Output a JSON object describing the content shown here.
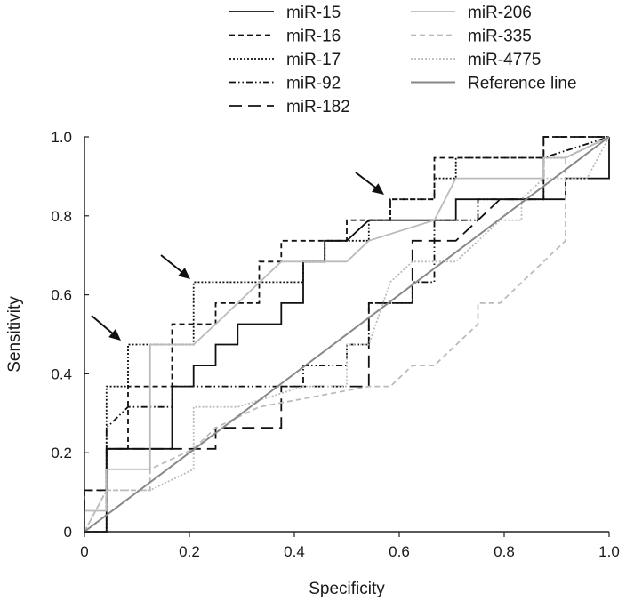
{
  "chart_data": {
    "type": "line",
    "title": "",
    "xlabel": "Specificity",
    "ylabel": "Sensitivity",
    "xlim": [
      0,
      1
    ],
    "ylim": [
      0,
      1
    ],
    "xticks": [
      "0",
      "0.2",
      "0.4",
      "0.6",
      "0.8",
      "1.0"
    ],
    "yticks": [
      "0",
      "0.2",
      "0.4",
      "0.6",
      "0.8",
      "1.0"
    ],
    "grid": false,
    "legend_position": "top",
    "series": [
      {
        "name": "miR-15",
        "color": "#111111",
        "style": "solid",
        "points": [
          [
            0,
            0
          ],
          [
            0.042,
            0
          ],
          [
            0.042,
            0.21
          ],
          [
            0.167,
            0.21
          ],
          [
            0.167,
            0.368
          ],
          [
            0.208,
            0.368
          ],
          [
            0.208,
            0.421
          ],
          [
            0.25,
            0.421
          ],
          [
            0.25,
            0.474
          ],
          [
            0.292,
            0.474
          ],
          [
            0.292,
            0.526
          ],
          [
            0.375,
            0.526
          ],
          [
            0.375,
            0.579
          ],
          [
            0.417,
            0.579
          ],
          [
            0.417,
            0.684
          ],
          [
            0.458,
            0.684
          ],
          [
            0.458,
            0.737
          ],
          [
            0.5,
            0.737
          ],
          [
            0.542,
            0.789
          ],
          [
            0.708,
            0.789
          ],
          [
            0.708,
            0.842
          ],
          [
            0.917,
            0.842
          ],
          [
            0.917,
            0.895
          ],
          [
            1,
            0.895
          ],
          [
            1,
            1
          ]
        ]
      },
      {
        "name": "miR-16",
        "color": "#111111",
        "style": "dash",
        "points": [
          [
            0,
            0
          ],
          [
            0,
            0.105
          ],
          [
            0.042,
            0.105
          ],
          [
            0.042,
            0.21
          ],
          [
            0.083,
            0.21
          ],
          [
            0.083,
            0.368
          ],
          [
            0.167,
            0.368
          ],
          [
            0.167,
            0.526
          ],
          [
            0.25,
            0.526
          ],
          [
            0.25,
            0.579
          ],
          [
            0.333,
            0.579
          ],
          [
            0.333,
            0.684
          ],
          [
            0.375,
            0.684
          ],
          [
            0.375,
            0.737
          ],
          [
            0.5,
            0.737
          ],
          [
            0.5,
            0.789
          ],
          [
            0.583,
            0.789
          ],
          [
            0.583,
            0.842
          ],
          [
            0.667,
            0.842
          ],
          [
            0.667,
            0.947
          ],
          [
            0.875,
            0.947
          ],
          [
            0.875,
            1
          ],
          [
            1,
            1
          ]
        ]
      },
      {
        "name": "miR-17",
        "color": "#111111",
        "style": "dot",
        "points": [
          [
            0,
            0
          ],
          [
            0.042,
            0
          ],
          [
            0.042,
            0.368
          ],
          [
            0.083,
            0.368
          ],
          [
            0.083,
            0.474
          ],
          [
            0.208,
            0.474
          ],
          [
            0.208,
            0.632
          ],
          [
            0.417,
            0.632
          ],
          [
            0.417,
            0.684
          ],
          [
            0.458,
            0.684
          ],
          [
            0.458,
            0.737
          ],
          [
            0.542,
            0.737
          ],
          [
            0.542,
            0.789
          ],
          [
            0.583,
            0.789
          ],
          [
            0.583,
            0.842
          ],
          [
            0.667,
            0.842
          ],
          [
            0.667,
            0.895
          ],
          [
            0.708,
            0.895
          ],
          [
            0.708,
            0.947
          ],
          [
            0.917,
            0.947
          ],
          [
            1,
            1
          ]
        ]
      },
      {
        "name": "miR-92",
        "color": "#111111",
        "style": "dashdotdot",
        "points": [
          [
            0,
            0
          ],
          [
            0.042,
            0
          ],
          [
            0.042,
            0.263
          ],
          [
            0.083,
            0.316
          ],
          [
            0.167,
            0.316
          ],
          [
            0.167,
            0.368
          ],
          [
            0.417,
            0.368
          ],
          [
            0.417,
            0.421
          ],
          [
            0.5,
            0.421
          ],
          [
            0.5,
            0.474
          ],
          [
            0.542,
            0.474
          ],
          [
            0.542,
            0.579
          ],
          [
            0.625,
            0.579
          ],
          [
            0.625,
            0.632
          ],
          [
            0.667,
            0.632
          ],
          [
            0.667,
            0.789
          ],
          [
            0.75,
            0.789
          ],
          [
            0.75,
            0.842
          ],
          [
            0.875,
            0.842
          ],
          [
            0.875,
            0.947
          ],
          [
            1,
            1
          ]
        ]
      },
      {
        "name": "miR-182",
        "color": "#111111",
        "style": "longdash",
        "points": [
          [
            0,
            0
          ],
          [
            0,
            0.105
          ],
          [
            0.042,
            0.105
          ],
          [
            0.042,
            0.21
          ],
          [
            0.25,
            0.21
          ],
          [
            0.25,
            0.263
          ],
          [
            0.375,
            0.263
          ],
          [
            0.375,
            0.368
          ],
          [
            0.542,
            0.368
          ],
          [
            0.542,
            0.579
          ],
          [
            0.625,
            0.579
          ],
          [
            0.625,
            0.737
          ],
          [
            0.708,
            0.737
          ],
          [
            0.75,
            0.789
          ],
          [
            0.792,
            0.842
          ],
          [
            0.875,
            0.842
          ],
          [
            0.875,
            1
          ],
          [
            1,
            1
          ]
        ]
      },
      {
        "name": "miR-206",
        "color": "#bbbbbb",
        "style": "solid",
        "points": [
          [
            0,
            0
          ],
          [
            0,
            0.053
          ],
          [
            0.042,
            0.053
          ],
          [
            0.042,
            0.158
          ],
          [
            0.125,
            0.158
          ],
          [
            0.125,
            0.474
          ],
          [
            0.208,
            0.474
          ],
          [
            0.25,
            0.526
          ],
          [
            0.292,
            0.579
          ],
          [
            0.375,
            0.684
          ],
          [
            0.5,
            0.684
          ],
          [
            0.542,
            0.737
          ],
          [
            0.667,
            0.789
          ],
          [
            0.708,
            0.895
          ],
          [
            0.875,
            0.895
          ],
          [
            0.875,
            0.947
          ],
          [
            0.917,
            0.947
          ],
          [
            1,
            1
          ]
        ]
      },
      {
        "name": "miR-335",
        "color": "#bbbbbb",
        "style": "dash",
        "points": [
          [
            0,
            0
          ],
          [
            0.042,
            0.105
          ],
          [
            0.125,
            0.105
          ],
          [
            0.125,
            0.158
          ],
          [
            0.208,
            0.21
          ],
          [
            0.25,
            0.263
          ],
          [
            0.333,
            0.316
          ],
          [
            0.542,
            0.368
          ],
          [
            0.583,
            0.368
          ],
          [
            0.625,
            0.421
          ],
          [
            0.667,
            0.421
          ],
          [
            0.75,
            0.526
          ],
          [
            0.75,
            0.579
          ],
          [
            0.792,
            0.579
          ],
          [
            0.917,
            0.737
          ],
          [
            0.917,
            0.947
          ],
          [
            1,
            1
          ]
        ]
      },
      {
        "name": "miR-4775",
        "color": "#bbbbbb",
        "style": "dot",
        "points": [
          [
            0,
            0
          ],
          [
            0.042,
            0.105
          ],
          [
            0.125,
            0.105
          ],
          [
            0.208,
            0.158
          ],
          [
            0.208,
            0.316
          ],
          [
            0.292,
            0.316
          ],
          [
            0.417,
            0.368
          ],
          [
            0.5,
            0.368
          ],
          [
            0.5,
            0.474
          ],
          [
            0.542,
            0.474
          ],
          [
            0.583,
            0.632
          ],
          [
            0.625,
            0.684
          ],
          [
            0.708,
            0.684
          ],
          [
            0.792,
            0.789
          ],
          [
            0.833,
            0.789
          ],
          [
            0.833,
            0.842
          ],
          [
            0.875,
            0.895
          ],
          [
            0.958,
            0.895
          ],
          [
            1,
            1
          ]
        ]
      },
      {
        "name": "Reference line",
        "color": "#888888",
        "style": "solid",
        "points": [
          [
            0,
            0
          ],
          [
            1,
            1
          ]
        ]
      }
    ]
  }
}
